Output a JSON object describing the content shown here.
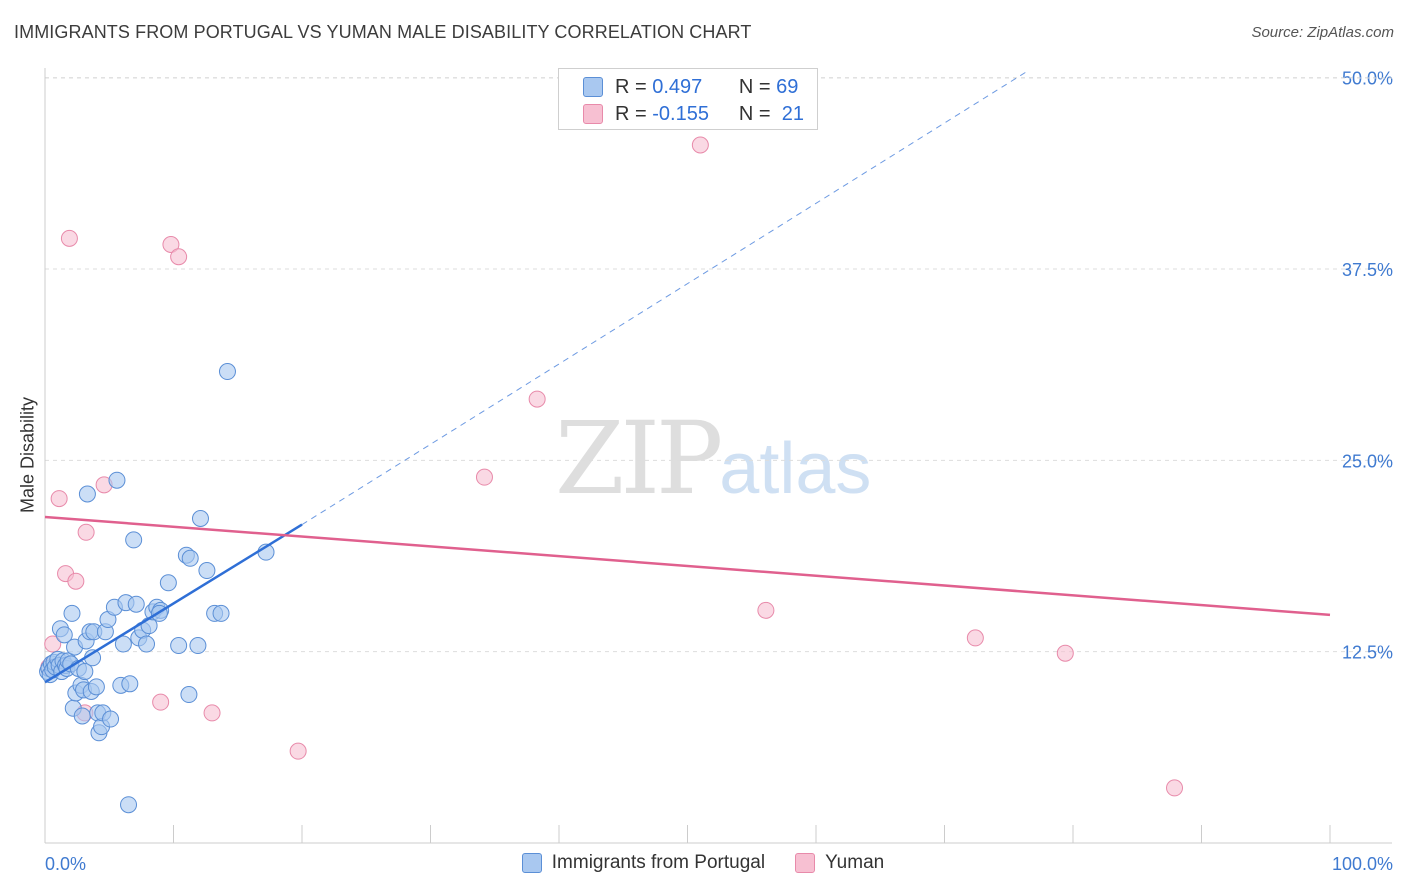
{
  "title": "IMMIGRANTS FROM PORTUGAL VS YUMAN MALE DISABILITY CORRELATION CHART",
  "source": "Source: ZipAtlas.com",
  "watermark": {
    "zip": "ZIP",
    "atlas": "atlas"
  },
  "stats": [
    {
      "r_label": "R =",
      "r_value": "0.497",
      "n_label": "N =",
      "n_value": "69"
    },
    {
      "r_label": "R =",
      "r_value": "-0.155",
      "n_label": "N =",
      "n_value": "21"
    }
  ],
  "legend": [
    {
      "label": "Immigrants from Portugal"
    },
    {
      "label": "Yuman"
    }
  ],
  "colors": {
    "blue_fill": "#a9c8f0",
    "blue_stroke": "#5b8fd6",
    "blue_line": "#2f6fd6",
    "pink_fill": "#f7c0d2",
    "pink_stroke": "#e88aaa",
    "pink_line": "#e0608e",
    "grid": "#dddddd",
    "axis_text": "#3f7ad0"
  },
  "chart_data": {
    "type": "scatter",
    "title": "IMMIGRANTS FROM PORTUGAL VS YUMAN MALE DISABILITY CORRELATION CHART",
    "xlabel": "",
    "ylabel": "Male Disability",
    "xlim": [
      0,
      100
    ],
    "ylim": [
      0,
      50.5
    ],
    "x_tick_labels": [
      "0.0%",
      "100.0%"
    ],
    "y_ticks": [
      12.5,
      25.0,
      37.5,
      50.0
    ],
    "y_tick_labels": [
      "12.5%",
      "25.0%",
      "37.5%",
      "50.0%"
    ],
    "grid": true,
    "series": [
      {
        "name": "Immigrants from Portugal",
        "color": "#a9c8f0",
        "r": 0.497,
        "n": 69,
        "trend": {
          "x": [
            0,
            20
          ],
          "y": [
            10.5,
            20.8
          ],
          "dashed_to": {
            "x": 76.6,
            "y": 50.5
          }
        },
        "points": [
          [
            0.2,
            11.2
          ],
          [
            0.3,
            11.4
          ],
          [
            0.4,
            11.0
          ],
          [
            0.5,
            11.7
          ],
          [
            0.6,
            11.3
          ],
          [
            0.7,
            11.8
          ],
          [
            0.8,
            11.5
          ],
          [
            1.0,
            12.0
          ],
          [
            1.1,
            11.6
          ],
          [
            1.2,
            14.0
          ],
          [
            1.3,
            11.2
          ],
          [
            1.4,
            11.9
          ],
          [
            1.5,
            13.6
          ],
          [
            1.6,
            11.6
          ],
          [
            1.7,
            11.4
          ],
          [
            1.8,
            11.9
          ],
          [
            2.0,
            11.7
          ],
          [
            2.1,
            15.0
          ],
          [
            2.2,
            8.8
          ],
          [
            2.3,
            12.8
          ],
          [
            2.4,
            9.8
          ],
          [
            2.6,
            11.4
          ],
          [
            2.8,
            10.3
          ],
          [
            2.9,
            8.3
          ],
          [
            3.0,
            10.0
          ],
          [
            3.1,
            11.2
          ],
          [
            3.2,
            13.2
          ],
          [
            3.3,
            22.8
          ],
          [
            3.5,
            13.8
          ],
          [
            3.6,
            9.9
          ],
          [
            3.7,
            12.1
          ],
          [
            3.8,
            13.8
          ],
          [
            4.0,
            10.2
          ],
          [
            4.1,
            8.5
          ],
          [
            4.2,
            7.2
          ],
          [
            4.4,
            7.6
          ],
          [
            4.5,
            8.5
          ],
          [
            4.7,
            13.8
          ],
          [
            4.9,
            14.6
          ],
          [
            5.1,
            8.1
          ],
          [
            5.4,
            15.4
          ],
          [
            5.6,
            23.7
          ],
          [
            5.9,
            10.3
          ],
          [
            6.1,
            13.0
          ],
          [
            6.3,
            15.7
          ],
          [
            6.5,
            2.5
          ],
          [
            6.6,
            10.4
          ],
          [
            6.9,
            19.8
          ],
          [
            7.1,
            15.6
          ],
          [
            7.3,
            13.4
          ],
          [
            7.6,
            13.9
          ],
          [
            7.9,
            13.0
          ],
          [
            8.1,
            14.2
          ],
          [
            8.4,
            15.1
          ],
          [
            8.7,
            15.4
          ],
          [
            9.0,
            15.2
          ],
          [
            9.6,
            17.0
          ],
          [
            10.4,
            12.9
          ],
          [
            11.0,
            18.8
          ],
          [
            11.2,
            9.7
          ],
          [
            11.3,
            18.6
          ],
          [
            11.9,
            12.9
          ],
          [
            12.1,
            21.2
          ],
          [
            12.6,
            17.8
          ],
          [
            13.2,
            15.0
          ],
          [
            13.7,
            15.0
          ],
          [
            14.2,
            30.8
          ],
          [
            17.2,
            19.0
          ],
          [
            8.9,
            15.0
          ]
        ]
      },
      {
        "name": "Yuman",
        "color": "#f7c0d2",
        "r": -0.155,
        "n": 21,
        "trend": {
          "x": [
            0,
            100
          ],
          "y": [
            21.3,
            14.9
          ]
        },
        "points": [
          [
            0.6,
            13.0
          ],
          [
            1.1,
            22.5
          ],
          [
            1.6,
            17.6
          ],
          [
            1.9,
            39.5
          ],
          [
            2.4,
            17.1
          ],
          [
            3.2,
            20.3
          ],
          [
            3.1,
            8.5
          ],
          [
            4.6,
            23.4
          ],
          [
            9.0,
            9.2
          ],
          [
            9.8,
            39.1
          ],
          [
            10.4,
            38.3
          ],
          [
            13.0,
            8.5
          ],
          [
            19.7,
            6.0
          ],
          [
            34.2,
            23.9
          ],
          [
            38.3,
            29.0
          ],
          [
            51.0,
            45.6
          ],
          [
            56.1,
            15.2
          ],
          [
            72.4,
            13.4
          ],
          [
            79.4,
            12.4
          ],
          [
            87.9,
            3.6
          ],
          [
            0.3,
            11.5
          ]
        ]
      }
    ]
  }
}
